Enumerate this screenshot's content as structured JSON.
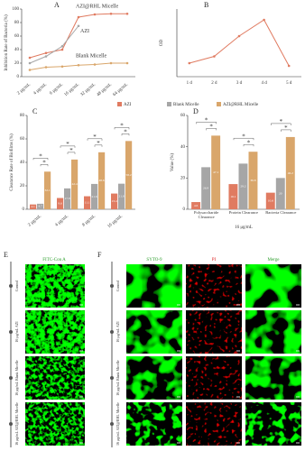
{
  "chart_data": [
    {
      "type": "line",
      "panel": "A",
      "ylabel": "Inhibition Rate of Bacteria (%)",
      "categories": [
        "2 μg/mL",
        "4 μg/mL",
        "6 μg/mL",
        "16 μg/mL",
        "32 μg/mL",
        "48 μg/mL",
        "64 μg/mL"
      ],
      "ylim": [
        0,
        100
      ],
      "yticks": [
        0,
        20,
        40,
        60,
        80,
        100
      ],
      "series": [
        {
          "name": "AZI@RHL Micelle",
          "color": "#e07b61",
          "values": [
            28,
            35,
            40,
            88,
            92,
            93,
            93
          ]
        },
        {
          "name": "AZI",
          "color": "#a6a6a6",
          "values": [
            20,
            30,
            45,
            75,
            null,
            null,
            null
          ]
        },
        {
          "name": "Blank Micelle",
          "color": "#d9a66b",
          "values": [
            10,
            14,
            15,
            17,
            18,
            20,
            20
          ]
        }
      ]
    },
    {
      "type": "line",
      "panel": "B",
      "ylabel": "OD",
      "categories": [
        "1 d",
        "2 d",
        "3 d",
        "4 d",
        "5 d"
      ],
      "ylim": [
        0.2,
        0.7
      ],
      "series": [
        {
          "color": "#e07b61",
          "values": [
            0.3,
            0.35,
            0.5,
            0.62,
            0.28
          ]
        }
      ]
    },
    {
      "type": "bar",
      "panel": "C",
      "ylabel": "Clearance Rate of Biofilms (%)",
      "categories": [
        "2 μg/mL",
        "4 μg/mL",
        "8 μg/mL",
        "16 μg/mL"
      ],
      "ylim": [
        0,
        80
      ],
      "yticks": [
        0,
        20,
        40,
        60,
        80
      ],
      "sig": "*",
      "series": [
        {
          "name": "AZI",
          "color": "#e07b61",
          "values": [
            4.1,
            9.6,
            11.1,
            13.4
          ]
        },
        {
          "name": "Blank Micelle",
          "color": "#a6a6a6",
          "values": [
            4.7,
            17.8,
            21.6,
            21.8
          ]
        },
        {
          "name": "AZI@RHL Micelle",
          "color": "#d9a66b",
          "values": [
            32.1,
            42.4,
            48.6,
            58.2
          ]
        }
      ]
    },
    {
      "type": "bar",
      "panel": "D",
      "ylabel": "Value (%)",
      "xlabel": "16 μg/mL",
      "categories": [
        "Polysaccharide Clearance",
        "Protein Clearance",
        "Bacteria Clearance"
      ],
      "ylim": [
        0,
        60
      ],
      "yticks": [
        0,
        20,
        40,
        60
      ],
      "sig": "*",
      "series": [
        {
          "color": "#e07b61",
          "values": [
            4.6,
            16.1,
            10.6
          ]
        },
        {
          "color": "#a6a6a6",
          "values": [
            26.9,
            29.2,
            20.0
          ]
        },
        {
          "color": "#d9a66b",
          "values": [
            47.1,
            36.8,
            46.2
          ]
        }
      ]
    }
  ],
  "images": {
    "E": {
      "label": "E",
      "title": "FITC-Con A"
    },
    "F": {
      "label": "F",
      "columns": [
        "SYTO-9",
        "PI",
        "Merge"
      ]
    },
    "rows": [
      "Control",
      "16 μg/mL AZI",
      "16 μg/mL Blank Micelle",
      "16 μg/mL AZI@RHL Micelle"
    ]
  }
}
